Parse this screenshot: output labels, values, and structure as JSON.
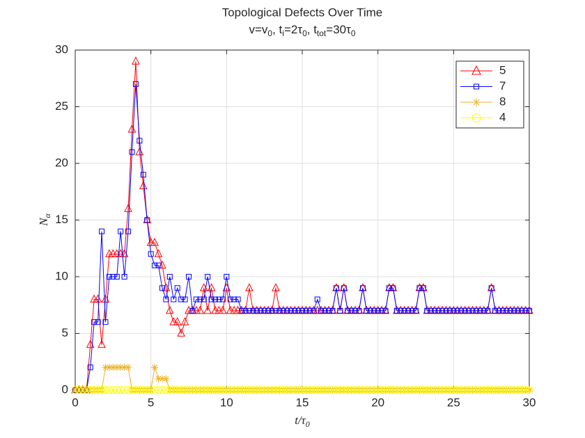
{
  "chart_data": {
    "type": "line",
    "title": "Topological Defects Over Time",
    "subtitle": [
      {
        "text": "v=v"
      },
      {
        "text": "0",
        "sub": true
      },
      {
        "text": ", t"
      },
      {
        "text": "i",
        "sub": true
      },
      {
        "text": "=2τ"
      },
      {
        "text": "0",
        "sub": true
      },
      {
        "text": ", t"
      },
      {
        "text": "tot",
        "sub": true
      },
      {
        "text": "=30τ"
      },
      {
        "text": "0",
        "sub": true
      }
    ],
    "xlabel": [
      {
        "text": "t/τ"
      },
      {
        "text": "0",
        "sub": true
      }
    ],
    "ylabel": [
      {
        "text": "N"
      },
      {
        "text": "α",
        "sub": true
      }
    ],
    "x": [
      0,
      0.25,
      0.5,
      0.75,
      1,
      1.25,
      1.5,
      1.75,
      2,
      2.25,
      2.5,
      2.75,
      3,
      3.25,
      3.5,
      3.75,
      4,
      4.25,
      4.5,
      4.75,
      5,
      5.25,
      5.5,
      5.75,
      6,
      6.25,
      6.5,
      6.75,
      7,
      7.25,
      7.5,
      7.75,
      8,
      8.25,
      8.5,
      8.75,
      9,
      9.25,
      9.5,
      9.75,
      10,
      10.25,
      10.5,
      10.75,
      11,
      11.25,
      11.5,
      11.75,
      12,
      12.25,
      12.5,
      12.75,
      13,
      13.25,
      13.5,
      13.75,
      14,
      14.25,
      14.5,
      14.75,
      15,
      15.25,
      15.5,
      15.75,
      16,
      16.25,
      16.5,
      16.75,
      17,
      17.25,
      17.5,
      17.75,
      18,
      18.25,
      18.5,
      18.75,
      19,
      19.25,
      19.5,
      19.75,
      20,
      20.25,
      20.5,
      20.75,
      21,
      21.25,
      21.5,
      21.75,
      22,
      22.25,
      22.5,
      22.75,
      23,
      23.25,
      23.5,
      23.75,
      24,
      24.25,
      24.5,
      24.75,
      25,
      25.25,
      25.5,
      25.75,
      26,
      26.25,
      26.5,
      26.75,
      27,
      27.25,
      27.5,
      27.75,
      28,
      28.25,
      28.5,
      28.75,
      29,
      29.25,
      29.5,
      29.75,
      30
    ],
    "series": [
      {
        "name": "5",
        "color": "#ff0000",
        "marker": "triangle",
        "values": [
          0,
          0,
          0,
          0,
          4,
          8,
          8,
          4,
          8,
          12,
          12,
          12,
          12,
          12,
          16,
          23,
          29,
          21,
          18,
          15,
          13,
          13,
          12,
          11,
          9,
          7,
          6,
          6,
          5,
          6,
          7,
          7,
          7,
          7,
          9,
          7,
          9,
          7,
          7,
          7,
          9,
          7,
          7,
          7,
          7,
          7,
          9,
          7,
          7,
          7,
          7,
          7,
          7,
          9,
          7,
          7,
          7,
          7,
          7,
          7,
          7,
          7,
          7,
          7,
          7,
          7,
          7,
          7,
          7,
          9,
          7,
          9,
          7,
          7,
          7,
          7,
          9,
          7,
          7,
          7,
          7,
          7,
          7,
          9,
          9,
          7,
          7,
          7,
          7,
          7,
          7,
          9,
          9,
          7,
          7,
          7,
          7,
          7,
          7,
          7,
          7,
          7,
          7,
          7,
          7,
          7,
          7,
          7,
          7,
          7,
          9,
          7,
          7,
          7,
          7,
          7,
          7,
          7,
          7,
          7,
          7
        ]
      },
      {
        "name": "7",
        "color": "#0000ff",
        "marker": "square",
        "values": [
          0,
          0,
          0,
          0,
          2,
          6,
          6,
          14,
          6,
          10,
          10,
          10,
          14,
          10,
          14,
          21,
          27,
          22,
          19,
          15,
          12,
          11,
          11,
          9,
          8,
          10,
          8,
          9,
          8,
          8,
          10,
          7,
          8,
          8,
          8,
          10,
          8,
          8,
          8,
          8,
          10,
          8,
          8,
          8,
          7,
          7,
          7,
          7,
          7,
          7,
          7,
          7,
          7,
          7,
          7,
          7,
          7,
          7,
          7,
          7,
          7,
          7,
          7,
          7,
          8,
          7,
          7,
          7,
          7,
          9,
          7,
          9,
          7,
          7,
          7,
          7,
          9,
          7,
          7,
          7,
          7,
          7,
          7,
          9,
          9,
          7,
          7,
          7,
          7,
          7,
          7,
          9,
          9,
          7,
          7,
          7,
          7,
          7,
          7,
          7,
          7,
          7,
          7,
          7,
          7,
          7,
          7,
          7,
          7,
          7,
          9,
          7,
          7,
          7,
          7,
          7,
          7,
          7,
          7,
          7,
          7
        ]
      },
      {
        "name": "8",
        "color": "#edb120",
        "marker": "asterisk",
        "values": [
          0,
          0,
          0,
          0,
          0,
          0,
          0,
          0,
          2,
          2,
          2,
          2,
          2,
          2,
          2,
          0,
          0,
          0,
          0,
          0,
          0,
          2,
          1,
          1,
          1,
          0,
          0,
          0,
          0,
          0,
          0,
          0,
          0,
          0,
          0,
          0,
          0,
          0,
          0,
          0,
          0,
          0,
          0,
          0,
          0,
          0,
          0,
          0,
          0,
          0,
          0,
          0,
          0,
          0,
          0,
          0,
          0,
          0,
          0,
          0,
          0,
          0,
          0,
          0,
          0,
          0,
          0,
          0,
          0,
          0,
          0,
          0,
          0,
          0,
          0,
          0,
          0,
          0,
          0,
          0,
          0,
          0,
          0,
          0,
          0,
          0,
          0,
          0,
          0,
          0,
          0,
          0,
          0,
          0,
          0,
          0,
          0,
          0,
          0,
          0,
          0,
          0,
          0,
          0,
          0,
          0,
          0,
          0,
          0,
          0,
          0,
          0,
          0,
          0,
          0,
          0,
          0,
          0,
          0,
          0,
          0
        ]
      },
      {
        "name": "4",
        "color": "#ffff00",
        "marker": "circle",
        "values": [
          0,
          0,
          0,
          0,
          0,
          0,
          0,
          0,
          0,
          0,
          0,
          0,
          0,
          0,
          0,
          0,
          0,
          0,
          0,
          0,
          0,
          0,
          0,
          0,
          0,
          0,
          0,
          0,
          0,
          0,
          0,
          0,
          0,
          0,
          0,
          0,
          0,
          0,
          0,
          0,
          0,
          0,
          0,
          0,
          0,
          0,
          0,
          0,
          0,
          0,
          0,
          0,
          0,
          0,
          0,
          0,
          0,
          0,
          0,
          0,
          0,
          0,
          0,
          0,
          0,
          0,
          0,
          0,
          0,
          0,
          0,
          0,
          0,
          0,
          0,
          0,
          0,
          0,
          0,
          0,
          0,
          0,
          0,
          0,
          0,
          0,
          0,
          0,
          0,
          0,
          0,
          0,
          0,
          0,
          0,
          0,
          0,
          0,
          0,
          0,
          0,
          0,
          0,
          0,
          0,
          0,
          0,
          0,
          0,
          0,
          0,
          0,
          0,
          0,
          0,
          0,
          0,
          0,
          0,
          0,
          0
        ]
      }
    ],
    "xlim": [
      0,
      30
    ],
    "xticks": [
      0,
      5,
      10,
      15,
      20,
      25,
      30
    ],
    "ylim": [
      0,
      30
    ],
    "yticks": [
      0,
      5,
      10,
      15,
      20,
      25,
      30
    ],
    "grid": true,
    "legend": "northeast"
  }
}
